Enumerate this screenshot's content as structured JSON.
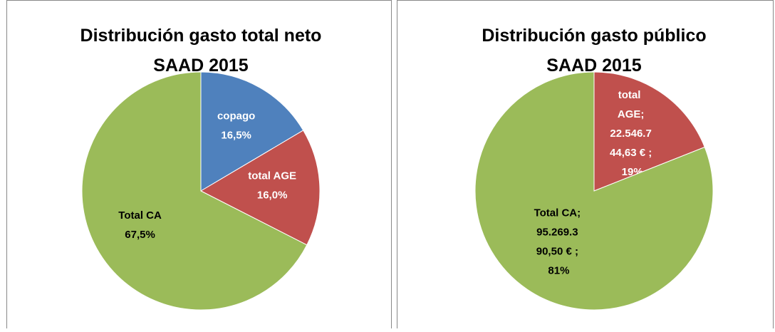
{
  "chart_data": [
    {
      "type": "pie",
      "title": [
        "Distribución gasto total neto",
        "SAAD 2015"
      ],
      "categories": [
        "copago",
        "total AGE",
        "Total CA"
      ],
      "values": [
        16.5,
        16.0,
        67.5
      ],
      "value_labels": [
        "16,5%",
        "16,0%",
        "67,5%"
      ],
      "colors": [
        "#4f81bd",
        "#c0504d",
        "#9bbb59"
      ],
      "label_colors": [
        "#ffffff",
        "#ffffff",
        "#000000"
      ]
    },
    {
      "type": "pie",
      "title": [
        "Distribución gasto público",
        "SAAD 2015"
      ],
      "categories": [
        "total AGE;",
        "Total CA;"
      ],
      "values": [
        19,
        81
      ],
      "value_labels": [
        "22.546.744,63 € ; 19%",
        "95.269.390,50 € ; 81%"
      ],
      "colors": [
        "#c0504d",
        "#9bbb59"
      ],
      "label_colors": [
        "#ffffff",
        "#000000"
      ]
    }
  ]
}
